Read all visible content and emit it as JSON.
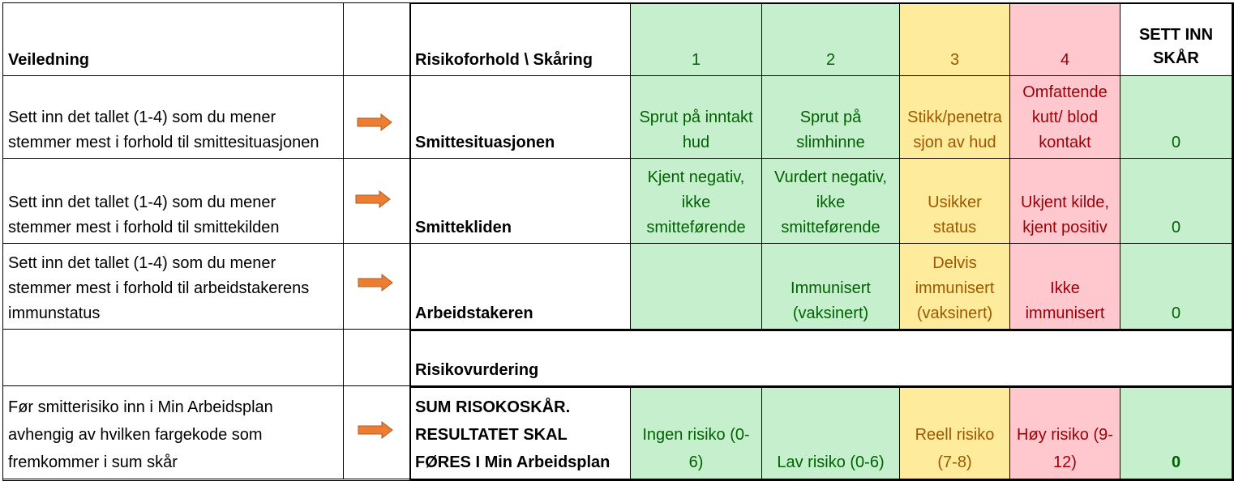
{
  "header": {
    "guide": "Veiledning",
    "factor": "Risikoforhold \\ Skåring",
    "scores": [
      "1",
      "2",
      "3",
      "4"
    ],
    "enter": "SETT INN SKÅR"
  },
  "rows": [
    {
      "guide": "Sett inn det tallet (1-4) som du mener stemmer mest i forhold til smittesituasjonen",
      "factor": "Smittesituasjonen",
      "cells": [
        "Sprut på inntakt hud",
        "Sprut på slimhinne",
        "Stikk/penetra sjon av hud",
        "Omfattende kutt/ blod kontakt"
      ],
      "score": "0"
    },
    {
      "guide": "Sett inn det tallet (1-4) som du mener stemmer mest i forhold til smittekilden",
      "factor": "Smittekliden",
      "cells": [
        "Kjent negativ, ikke smitteførende",
        "Vurdert negativ, ikke smitteførende",
        "Usikker status",
        "Ukjent kilde, kjent positiv"
      ],
      "score": "0"
    },
    {
      "guide": "Sett inn det tallet (1-4) som du mener stemmer mest i forhold til arbeidstakerens immunstatus",
      "factor": "Arbeidstakeren",
      "cells": [
        "",
        "Immunisert (vaksinert)",
        "Delvis immunisert (vaksinert)",
        "Ikke immunisert"
      ],
      "score": "0"
    }
  ],
  "assessment": {
    "label": "Risikovurdering"
  },
  "sum": {
    "guide": "Før smitterisiko inn i Min Arbeidsplan avhengig av hvilken fargekode som fremkommer i sum skår",
    "factor": "SUM RISOKOSKÅR. RESULTATET SKAL FØRES I Min Arbeidsplan",
    "cells": [
      "Ingen risiko (0-6)",
      "Lav risiko (0-6)",
      "Reell risiko (7-8)",
      "Høy risiko (9-12)"
    ],
    "score": "0"
  },
  "colors": {
    "green_bg": "#C6EFCE",
    "green_text": "#006100",
    "yellow_bg": "#FFEB9C",
    "yellow_text": "#9C5700",
    "red_bg": "#FFC7CE",
    "red_text": "#9C0006",
    "arrow": "#ED7D31"
  }
}
